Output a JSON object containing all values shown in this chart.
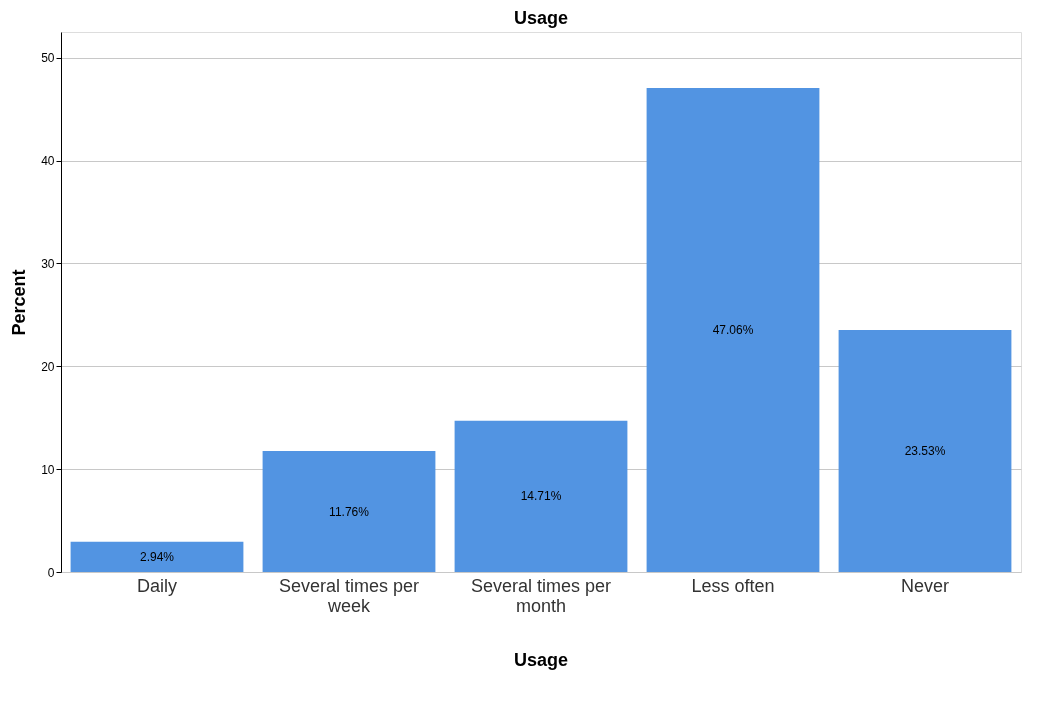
{
  "chart_data": {
    "type": "bar",
    "title": "Usage",
    "xlabel": "Usage",
    "ylabel": "Percent",
    "categories": [
      "Daily",
      "Several times per week",
      "Several times per month",
      "Less often",
      "Never"
    ],
    "values": [
      2.94,
      11.76,
      14.71,
      47.06,
      23.53
    ],
    "value_labels": [
      "2.94%",
      "11.76%",
      "14.71%",
      "47.06%",
      "23.53%"
    ],
    "color": "#5294e2",
    "ylim": [
      0,
      52.5
    ],
    "yticks": [
      0,
      10,
      20,
      30,
      40,
      50
    ],
    "grid": "y"
  }
}
